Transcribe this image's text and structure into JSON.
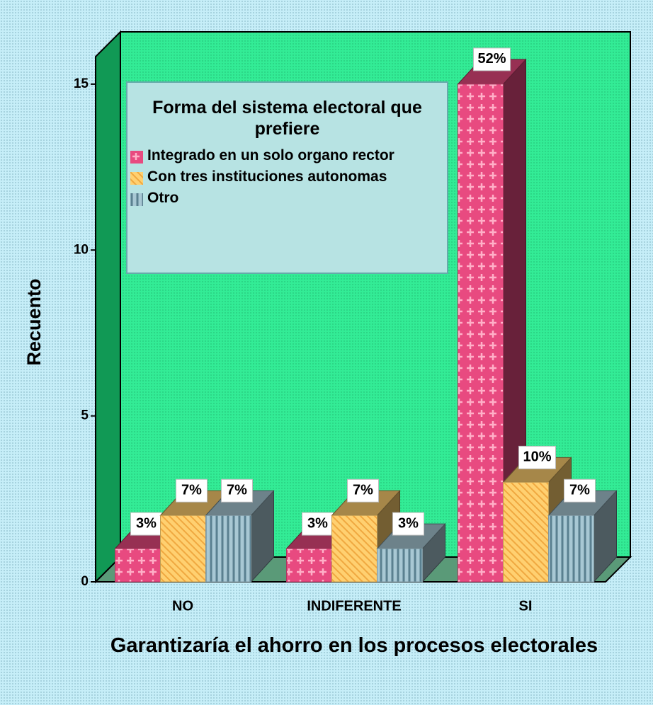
{
  "chart_data": {
    "type": "bar3d",
    "y_label": "Recuento",
    "x_label": "Garantizaría el ahorro en los procesos electorales",
    "legend_title": "Forma del sistema electoral que prefiere",
    "categories": [
      "NO",
      "INDIFERENTE",
      "SI"
    ],
    "series": [
      {
        "name": "Integrado en un solo organo rector",
        "color": "#e84a80",
        "values": [
          1,
          1,
          15
        ],
        "value_labels": [
          "3%",
          "3%",
          "52%"
        ]
      },
      {
        "name": "Con tres instituciones autonomas",
        "color": "#ffd070",
        "values": [
          2,
          2,
          3
        ],
        "value_labels": [
          "7%",
          "7%",
          "10%"
        ]
      },
      {
        "name": "Otro",
        "color": "#a8c8d4",
        "values": [
          2,
          1,
          2
        ],
        "value_labels": [
          "7%",
          "3%",
          "7%"
        ]
      }
    ],
    "ylim": [
      0,
      16
    ],
    "yticks": [
      0,
      5,
      10,
      15
    ]
  }
}
